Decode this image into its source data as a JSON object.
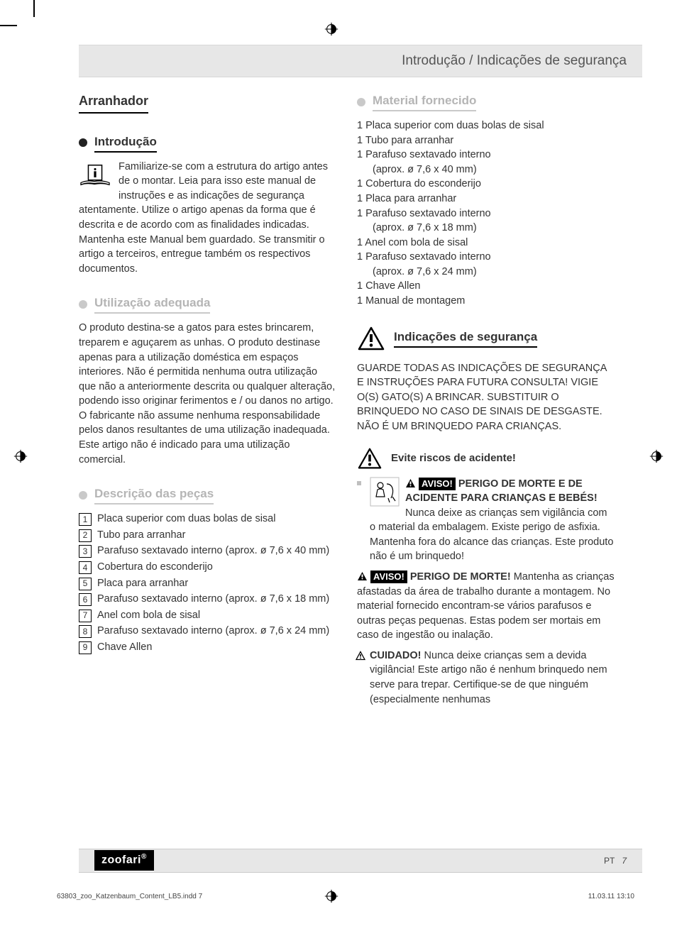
{
  "header": {
    "breadcrumb": "Introdução / Indicações de segurança"
  },
  "left": {
    "product_title": "Arranhador",
    "s1": {
      "title": "Introdução",
      "body": "Familiarize-se com a estrutura do artigo antes de o montar. Leia para isso este manual de instruções e as indicações de segurança atentamente. Utilize o artigo apenas da forma que é descrita e de acordo com as finalidades indicadas. Mantenha este Manual bem guardado. Se transmitir o artigo a terceiros, entregue também os respectivos documentos."
    },
    "s2": {
      "title": "Utilização adequada",
      "body": "O produto destina-se a gatos para estes brincarem, treparem e aguçarem as unhas. O produto destinase apenas para a utilização doméstica em espaços interiores. Não é permitida nenhuma outra utilização que não a anteriormente descrita ou qualquer alteração, podendo isso originar ferimentos e / ou danos no artigo. O fabricante não assume nenhuma responsabilidade pelos danos resultantes de uma utilização inadequada. Este artigo não é indicado para uma utilização comercial."
    },
    "s3": {
      "title": "Descrição das peças",
      "parts": [
        {
          "n": "1",
          "t": "Placa superior com duas bolas de sisal"
        },
        {
          "n": "2",
          "t": "Tubo para arranhar"
        },
        {
          "n": "3",
          "t": "Parafuso sextavado interno (aprox. ø 7,6 x 40 mm)"
        },
        {
          "n": "4",
          "t": "Cobertura do esconderijo"
        },
        {
          "n": "5",
          "t": "Placa para arranhar"
        },
        {
          "n": "6",
          "t": "Parafuso sextavado interno (aprox. ø 7,6 x 18 mm)"
        },
        {
          "n": "7",
          "t": "Anel com bola de sisal"
        },
        {
          "n": "8",
          "t": "Parafuso sextavado interno (aprox. ø 7,6 x 24 mm)"
        },
        {
          "n": "9",
          "t": "Chave Allen"
        }
      ]
    }
  },
  "right": {
    "s1": {
      "title": "Material fornecido",
      "items": [
        "1 Placa superior com duas bolas de sisal",
        "1 Tubo para arranhar",
        "1 Parafuso sextavado interno",
        "   (aprox. ø 7,6 x 40 mm)",
        "1 Cobertura do esconderijo",
        "1 Placa para arranhar",
        "1 Parafuso sextavado interno",
        "   (aprox. ø 7,6 x 18 mm)",
        "1 Anel com bola de sisal",
        "1 Parafuso sextavado interno",
        "   (aprox. ø 7,6 x 24 mm)",
        "1 Chave Allen",
        "1 Manual de montagem"
      ]
    },
    "safety": {
      "title": "Indicações de segurança",
      "caps": "GUARDE TODAS AS INDICAÇÕES DE SEGURANÇA E INSTRUÇÕES PARA FUTURA CONSULTA! VIGIE O(S) GATO(S) A BRINCAR. SUBSTITUIR O BRINQUEDO NO CASO DE SINAIS DE DESGASTE. NÃO É UM BRINQUEDO PARA CRIANÇAS.",
      "evite": "Evite riscos de acidente!",
      "aviso_label": "AVISO!",
      "cuidado_label": "CUIDADO!",
      "w1_bold": "PERIGO DE MORTE E DE ACIDENTE PARA CRIANÇAS E BEBÉS!",
      "w1_body": " Nunca deixe as crianças sem vigilância com o material da embalagem. Existe perigo de asfixia. Mantenha fora do alcance das crianças. Este produto não é um brinquedo!",
      "w2_bold": "PERIGO DE MORTE!",
      "w2_body": " Mantenha as crianças afastadas da área de trabalho durante a montagem. No material fornecido encontram-se vários parafusos e outras peças pequenas. Estas podem ser mortais em caso de ingestão ou inalação.",
      "w3_body": " Nunca deixe crianças sem a devida vigilância! Este artigo não é nenhum brinquedo nem serve para trepar. Certifique-se de que ninguém (especialmente nenhumas"
    }
  },
  "footer": {
    "brand": "zoofari",
    "lang": "PT",
    "page": "7",
    "indd": "63803_zoo_Katzenbaum_Content_LB5.indd   7",
    "date": "11.03.11   13:10"
  },
  "colors": {
    "grey_heading": "#b5b5b5",
    "bar_bg": "#e7e7e7"
  }
}
